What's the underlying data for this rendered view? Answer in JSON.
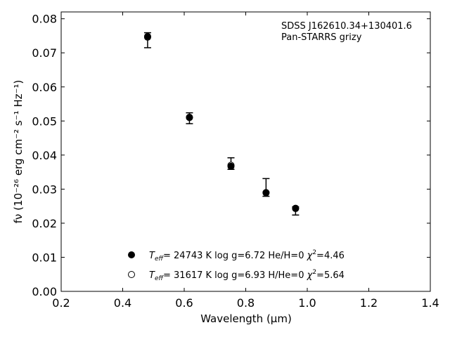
{
  "chart_data": {
    "type": "scatter",
    "xlabel": "Wavelength (µm)",
    "ylabel": "fν (10⁻²⁶ erg cm⁻² s⁻¹ Hz⁻¹)",
    "xlim": [
      0.2,
      1.4
    ],
    "ylim": [
      0.0,
      0.082
    ],
    "xticks": [
      0.2,
      0.4,
      0.6,
      0.8,
      1.0,
      1.2,
      1.4
    ],
    "xtick_labels": [
      "0.2",
      "0.4",
      "0.6",
      "0.8",
      "1.0",
      "1.2",
      "1.4"
    ],
    "yticks": [
      0.0,
      0.01,
      0.02,
      0.03,
      0.04,
      0.05,
      0.06,
      0.07,
      0.08
    ],
    "ytick_labels": [
      "0.00",
      "0.01",
      "0.02",
      "0.03",
      "0.04",
      "0.05",
      "0.06",
      "0.07",
      "0.08"
    ],
    "grid": false,
    "legend_position": "lower-center",
    "annotation": [
      "SDSS J162610.34+130401.6",
      "Pan-STARRS grizy"
    ],
    "observed": {
      "x": [
        0.481,
        0.617,
        0.752,
        0.866,
        0.962
      ],
      "y": [
        0.0737,
        0.0508,
        0.0375,
        0.0305,
        0.0236
      ],
      "yerr": [
        0.0022,
        0.0016,
        0.0017,
        0.0026,
        0.0012
      ]
    },
    "series": [
      {
        "name": "Teff= 24743 K  log g=6.72  He/H=0  χ2=4.46",
        "marker": "filled-circle",
        "x": [
          0.481,
          0.617,
          0.752,
          0.866,
          0.962
        ],
        "y": [
          0.0748,
          0.051,
          0.0367,
          0.0289,
          0.0243
        ]
      },
      {
        "name": "Teff= 31617 K  log g=6.93  H/He=0  χ2=5.64",
        "marker": "open-circle",
        "x": [
          0.481,
          0.617,
          0.752,
          0.866,
          0.962
        ],
        "y": [
          0.0746,
          0.0511,
          0.037,
          0.029,
          0.0244
        ]
      }
    ],
    "legend": [
      {
        "marker": "filled-circle",
        "teff": "24743",
        "logg": "6.72",
        "comp": "He/H=0",
        "chi2": "4.46"
      },
      {
        "marker": "open-circle",
        "teff": "31617",
        "logg": "6.93",
        "comp": "H/He=0",
        "chi2": "5.64"
      }
    ],
    "colors": {
      "marker": "#000000",
      "axes": "#000000",
      "background": "#ffffff"
    }
  }
}
